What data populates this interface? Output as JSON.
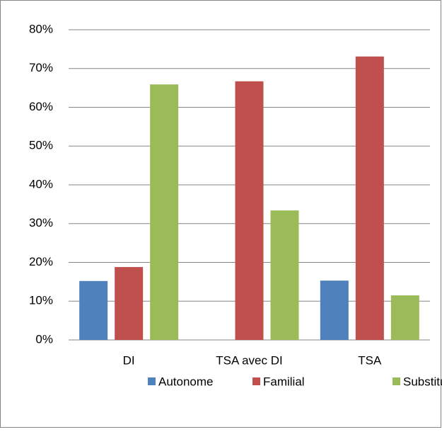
{
  "chart_data": {
    "type": "bar",
    "categories": [
      "DI",
      "TSA avec DI",
      "TSA"
    ],
    "series": [
      {
        "name": "Autonome",
        "color": "#4f81bd",
        "values": [
          15.2,
          0,
          15.3
        ]
      },
      {
        "name": "Familial",
        "color": "#c0504d",
        "values": [
          18.8,
          66.7,
          73.1
        ]
      },
      {
        "name": "Substitut",
        "color": "#9bbb59",
        "values": [
          65.9,
          33.4,
          11.5
        ]
      }
    ],
    "ylim": [
      0,
      80
    ],
    "yticks": [
      {
        "value": 0,
        "label": "0%"
      },
      {
        "value": 10,
        "label": "10%"
      },
      {
        "value": 20,
        "label": "20%"
      },
      {
        "value": 30,
        "label": "30%"
      },
      {
        "value": 40,
        "label": "40%"
      },
      {
        "value": 50,
        "label": "50%"
      },
      {
        "value": 60,
        "label": "60%"
      },
      {
        "value": 70,
        "label": "70%"
      },
      {
        "value": 80,
        "label": "80%"
      }
    ],
    "grid": true,
    "legend": "bottom"
  }
}
